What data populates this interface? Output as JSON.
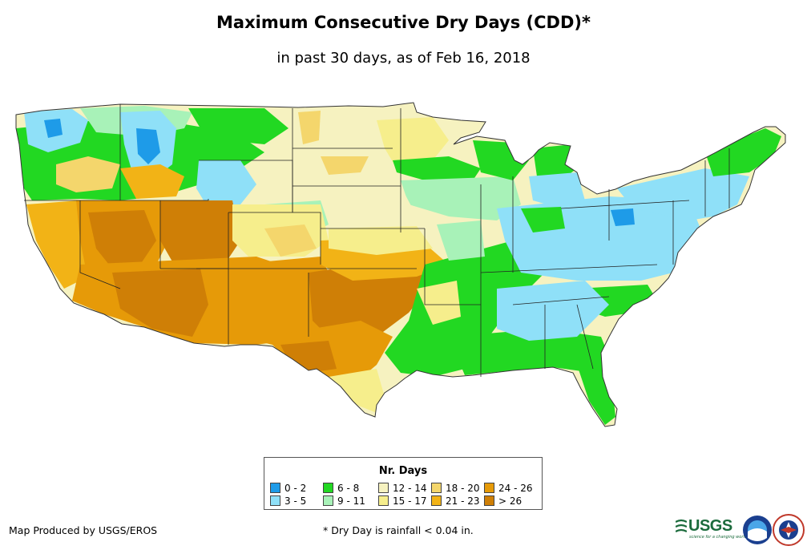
{
  "title": "Maximum Consecutive Dry Days (CDD)*",
  "subtitle": "in past 30 days, as of Feb 16, 2018",
  "legend": {
    "title": "Nr. Days",
    "items": [
      {
        "label": "0 - 2",
        "color": "#1e9be8"
      },
      {
        "label": "3 - 5",
        "color": "#8fe0f8"
      },
      {
        "label": "6 - 8",
        "color": "#22d822"
      },
      {
        "label": "9 - 11",
        "color": "#a8f2b8"
      },
      {
        "label": "12 - 14",
        "color": "#f6f2c0"
      },
      {
        "label": "15 - 17",
        "color": "#f6ee8c"
      },
      {
        "label": "18 - 20",
        "color": "#f4d66c"
      },
      {
        "label": "21 - 23",
        "color": "#f2b316"
      },
      {
        "label": "24 - 26",
        "color": "#e69a08"
      },
      {
        "label": "> 26",
        "color": "#cf7f06"
      }
    ]
  },
  "credit": "Map Produced by USGS/EROS",
  "footnote": "* Dry Day is rainfall < 0.04 in.",
  "logos": {
    "usgs": "USGS",
    "usgs_tagline": "science for a changing world"
  }
}
